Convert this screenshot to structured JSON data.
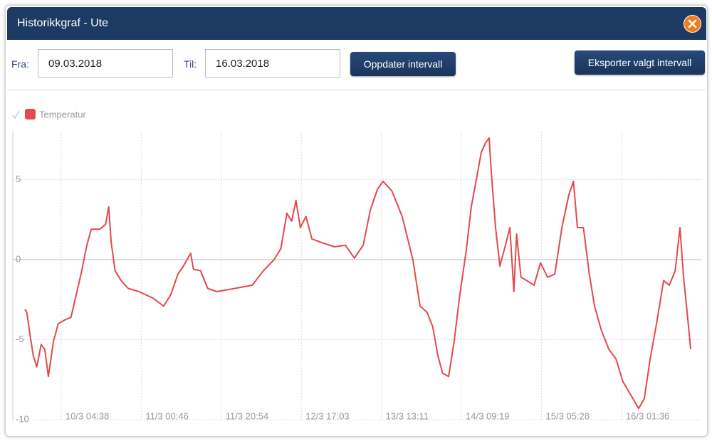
{
  "header": {
    "title": "Historikkgraf - Ute"
  },
  "form": {
    "from_label": "Fra:",
    "from_value": "09.03.2018",
    "to_label": "Til:",
    "to_value": "16.03.2018",
    "update_button": "Oppdater intervall",
    "export_button": "Eksporter valgt intervall"
  },
  "chart_data": {
    "type": "line",
    "x": [
      "9/3 19:30",
      "9/3 20:00",
      "9/3 20:48",
      "9/3 21:36",
      "9/3 22:30",
      "9/3 23:36",
      "10/3 00:30",
      "10/3 01:24",
      "10/3 02:42",
      "10/3 03:54",
      "10/3 05:18",
      "10/3 07:06",
      "10/3 08:36",
      "10/3 09:48",
      "10/3 11:06",
      "10/3 12:12",
      "10/3 14:18",
      "10/3 15:48",
      "10/3 16:36",
      "10/3 17:12",
      "10/3 18:12",
      "10/3 19:42",
      "10/3 21:30",
      "11/3 00:12",
      "11/3 03:42",
      "11/3 06:24",
      "11/3 08:12",
      "11/3 10:00",
      "11/3 11:24",
      "11/3 13:12",
      "11/3 13:54",
      "11/3 15:42",
      "11/3 17:30",
      "11/3 19:48",
      "12/3 00:18",
      "12/3 04:42",
      "12/3 07:30",
      "12/3 10:12",
      "12/3 11:54",
      "12/3 13:24",
      "12/3 14:36",
      "12/3 15:42",
      "12/3 16:48",
      "12/3 18:12",
      "12/3 19:42",
      "12/3 21:48",
      "13/3 01:24",
      "13/3 04:06",
      "13/3 06:24",
      "13/3 08:36",
      "13/3 10:24",
      "13/3 12:12",
      "13/3 13:36",
      "13/3 15:48",
      "13/3 18:24",
      "13/3 21:06",
      "13/3 22:54",
      "14/3 00:42",
      "14/3 02:06",
      "14/3 03:24",
      "14/3 04:36",
      "14/3 06:06",
      "14/3 07:30",
      "14/3 08:48",
      "14/3 10:36",
      "14/3 11:48",
      "14/3 13:18",
      "14/3 14:18",
      "14/3 15:24",
      "14/3 16:18",
      "14/3 16:48",
      "14/3 17:54",
      "14/3 19:00",
      "14/3 20:24",
      "14/3 21:30",
      "14/3 22:30",
      "14/3 23:12",
      "15/3 00:18",
      "15/3 01:42",
      "15/3 03:36",
      "15/3 05:12",
      "15/3 07:00",
      "15/3 08:48",
      "15/3 10:36",
      "15/3 12:18",
      "15/3 13:30",
      "15/3 14:30",
      "15/3 16:00",
      "15/3 17:30",
      "15/3 18:48",
      "15/3 20:30",
      "15/3 22:24",
      "16/3 00:12",
      "16/3 01:54",
      "16/3 03:48",
      "16/3 05:54",
      "16/3 07:18",
      "16/3 08:48",
      "16/3 10:24",
      "16/3 12:12",
      "16/3 13:36",
      "16/3 15:06",
      "16/3 16:18",
      "16/3 17:12",
      "16/3 18:06",
      "16/3 19:00"
    ],
    "series": [
      {
        "name": "Temperatur",
        "color": "#e5484d",
        "values": [
          -3.1,
          -3.3,
          -4.7,
          -6,
          -6.7,
          -5.3,
          -5.6,
          -7.3,
          -5.1,
          -4,
          -3.8,
          -3.6,
          -2,
          -0.7,
          0.9,
          1.9,
          1.9,
          2.2,
          3.3,
          1.1,
          -0.7,
          -1.3,
          -1.8,
          -2,
          -2.4,
          -2.9,
          -2.2,
          -0.9,
          -0.4,
          0.4,
          -0.6,
          -0.7,
          -1.8,
          -2,
          -1.8,
          -1.6,
          -0.7,
          0,
          0.7,
          2.9,
          2.4,
          3.7,
          2,
          2.7,
          1.3,
          1.1,
          0.8,
          0.9,
          0.1,
          0.9,
          3.1,
          4.4,
          4.9,
          4.3,
          2.7,
          0,
          -2.9,
          -3.3,
          -4.2,
          -6,
          -7.1,
          -7.3,
          -5.1,
          -2.4,
          0.7,
          3.3,
          5.3,
          6.7,
          7.3,
          7.6,
          5.6,
          2,
          -0.4,
          0.9,
          2,
          -2,
          1.6,
          -1.1,
          -1.3,
          -1.6,
          -0.2,
          -1.1,
          -0.9,
          2,
          4,
          4.9,
          2,
          2,
          -0.9,
          -2.9,
          -4.4,
          -5.6,
          -6.2,
          -7.6,
          -8.4,
          -9.3,
          -8.7,
          -6.2,
          -4,
          -1.3,
          -1.6,
          -0.7,
          2,
          -1.1,
          -3.3,
          -5.6
        ]
      }
    ],
    "xlim": [
      "9/3 16:28",
      "16/3 21:40"
    ],
    "xticks": [
      "10/3 04:38",
      "11/3 00:46",
      "11/3 20:54",
      "12/3 17:03",
      "13/3 13:11",
      "14/3 09:19",
      "15/3 05:28",
      "16/3 01:36"
    ],
    "ylim": [
      -10,
      8
    ],
    "yticks": [
      -10,
      -5,
      0,
      5
    ],
    "grid": true
  }
}
